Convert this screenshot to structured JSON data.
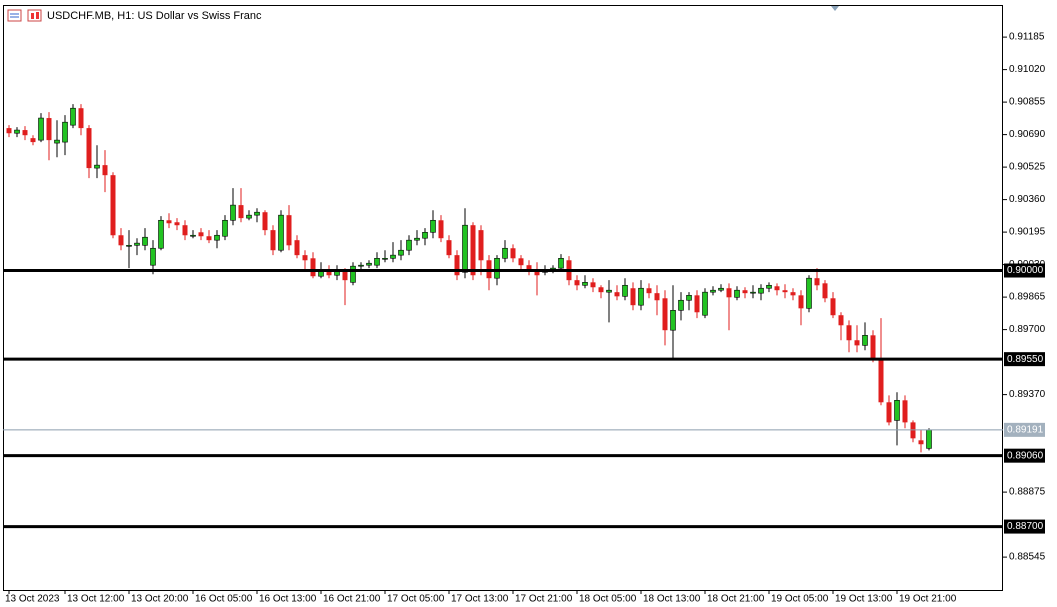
{
  "chart_data": {
    "type": "candlestick",
    "title": "USDCHF.MB, H1: US Dollar vs Swiss Franc",
    "up_color": "#22c322",
    "down_color": "#e01e1e",
    "categories": [
      "13 Oct 2023",
      null,
      null,
      null,
      null,
      null,
      null,
      "13 Oct 12:00",
      null,
      null,
      null,
      null,
      null,
      null,
      null,
      "13 Oct 20:00",
      null,
      null,
      null,
      null,
      null,
      null,
      null,
      "16 Oct 05:00",
      null,
      null,
      null,
      null,
      null,
      null,
      null,
      "16 Oct 13:00",
      null,
      null,
      null,
      null,
      null,
      null,
      null,
      "16 Oct 21:00",
      null,
      null,
      null,
      null,
      null,
      null,
      null,
      "17 Oct 05:00",
      null,
      null,
      null,
      null,
      null,
      null,
      null,
      "17 Oct 13:00",
      null,
      null,
      null,
      null,
      null,
      null,
      null,
      "17 Oct 21:00",
      null,
      null,
      null,
      null,
      null,
      null,
      null,
      "18 Oct 05:00",
      null,
      null,
      null,
      null,
      null,
      null,
      null,
      "18 Oct 13:00",
      null,
      null,
      null,
      null,
      null,
      null,
      null,
      "18 Oct 21:00",
      null,
      null,
      null,
      null,
      null,
      null,
      null,
      "19 Oct 05:00",
      null,
      null,
      null,
      null,
      null,
      null,
      null,
      "19 Oct 13:00",
      null,
      null,
      null,
      null,
      null,
      null,
      null,
      "19 Oct 21:00",
      null,
      null,
      null,
      null
    ],
    "open": [
      0.90723,
      0.90697,
      0.90713,
      0.90672,
      0.90662,
      0.90774,
      0.90647,
      0.90652,
      0.90738,
      0.90824,
      0.90723,
      0.9052,
      0.90535,
      0.90484,
      0.90179,
      0.90128,
      0.90128,
      0.90128,
      0.90027,
      0.90113,
      0.90255,
      0.90245,
      0.9023,
      0.90179,
      0.90194,
      0.90174,
      0.90154,
      0.90174,
      0.90255,
      0.90332,
      0.90266,
      0.90281,
      0.90296,
      0.90205,
      0.90103,
      0.90281,
      0.90154,
      0.90078,
      0.90062,
      0.89971,
      0.90001,
      0.89976,
      0.90001,
      0.8994,
      0.90022,
      0.90027,
      0.90027,
      0.90062,
      0.90062,
      0.90078,
      0.90103,
      0.90154,
      0.90164,
      0.90194,
      0.90255,
      0.90154,
      0.90078,
      0.89991,
      0.9023,
      0.90205,
      0.90052,
      0.89961,
      0.90062,
      0.90113,
      0.90062,
      0.90027,
      0.90001,
      0.89991,
      0.90001,
      0.90012,
      0.90052,
      0.89951,
      0.89925,
      0.8994,
      0.89915,
      0.8989,
      0.8989,
      0.89869,
      0.8991,
      0.89824,
      0.8991,
      0.89885,
      0.89859,
      0.89697,
      0.89798,
      0.89849,
      0.89874,
      0.89773,
      0.8989,
      0.899,
      0.8991,
      0.89864,
      0.899,
      0.8989,
      0.89885,
      0.8991,
      0.8992,
      0.899,
      0.8989,
      0.89874,
      0.89808,
      0.89961,
      0.89935,
      0.89859,
      0.89773,
      0.89722,
      0.89646,
      0.8962,
      0.89671,
      0.89554,
      0.89331,
      0.89239,
      0.89341,
      0.89229,
      0.89138,
      0.89097
    ],
    "high": [
      0.90738,
      0.90728,
      0.90733,
      0.90687,
      0.90799,
      0.90804,
      0.90763,
      0.90789,
      0.90845,
      0.90845,
      0.90738,
      0.90636,
      0.90611,
      0.90499,
      0.90215,
      0.90205,
      0.90164,
      0.90215,
      0.90154,
      0.90276,
      0.90291,
      0.90266,
      0.90255,
      0.90205,
      0.90215,
      0.90205,
      0.90205,
      0.90281,
      0.90418,
      0.90418,
      0.90306,
      0.90316,
      0.90306,
      0.9023,
      0.90306,
      0.90332,
      0.90179,
      0.90103,
      0.90093,
      0.90042,
      0.90027,
      0.90027,
      0.90012,
      0.90042,
      0.90042,
      0.90052,
      0.90093,
      0.90103,
      0.90144,
      0.90154,
      0.90179,
      0.90205,
      0.90215,
      0.90306,
      0.90281,
      0.90179,
      0.90103,
      0.90316,
      0.90245,
      0.9023,
      0.90078,
      0.90078,
      0.90154,
      0.90133,
      0.90078,
      0.90052,
      0.90042,
      0.90027,
      0.90027,
      0.90083,
      0.90073,
      0.89976,
      0.89976,
      0.89961,
      0.89925,
      0.89951,
      0.89925,
      0.89961,
      0.8994,
      0.89951,
      0.89935,
      0.89925,
      0.899,
      0.89925,
      0.8989,
      0.8989,
      0.899,
      0.8991,
      0.8992,
      0.8993,
      0.89935,
      0.8992,
      0.89915,
      0.89925,
      0.8993,
      0.8994,
      0.89935,
      0.8993,
      0.8991,
      0.899,
      0.89976,
      0.90012,
      0.89951,
      0.8989,
      0.89788,
      0.89747,
      0.89722,
      0.89737,
      0.89697,
      0.89758,
      0.89366,
      0.89382,
      0.89366,
      0.89239,
      0.89191,
      0.89199
    ],
    "low": [
      0.90677,
      0.90677,
      0.90662,
      0.90636,
      0.90652,
      0.9056,
      0.90575,
      0.90586,
      0.90723,
      0.90687,
      0.90469,
      0.90469,
      0.90398,
      0.90164,
      0.90103,
      0.90012,
      0.90078,
      0.90103,
      0.89981,
      0.90103,
      0.90215,
      0.90205,
      0.90154,
      0.90164,
      0.90154,
      0.90139,
      0.90113,
      0.90154,
      0.9023,
      0.90245,
      0.90255,
      0.90245,
      0.90179,
      0.90078,
      0.90093,
      0.90103,
      0.90062,
      0.90001,
      0.89961,
      0.89961,
      0.89961,
      0.89951,
      0.89824,
      0.89925,
      0.90001,
      0.90012,
      0.90012,
      0.90042,
      0.90042,
      0.90052,
      0.90078,
      0.90128,
      0.90128,
      0.90164,
      0.90144,
      0.90062,
      0.89951,
      0.89961,
      0.89951,
      0.89976,
      0.899,
      0.89925,
      0.90042,
      0.90042,
      0.90001,
      0.89976,
      0.89874,
      0.89976,
      0.89986,
      0.90001,
      0.89925,
      0.899,
      0.8991,
      0.8989,
      0.89859,
      0.89737,
      0.89849,
      0.89849,
      0.89798,
      0.89798,
      0.89859,
      0.89773,
      0.8962,
      0.89554,
      0.89747,
      0.89798,
      0.89758,
      0.89758,
      0.89874,
      0.8989,
      0.89697,
      0.89849,
      0.89859,
      0.89859,
      0.89849,
      0.8989,
      0.89874,
      0.89859,
      0.89849,
      0.89722,
      0.89788,
      0.899,
      0.89839,
      0.89758,
      0.89646,
      0.89585,
      0.89585,
      0.89595,
      0.89534,
      0.89316,
      0.89214,
      0.89112,
      0.89199,
      0.89128,
      0.89077,
      0.89087
    ],
    "close": [
      0.90697,
      0.90713,
      0.90687,
      0.90652,
      0.90774,
      0.90662,
      0.90662,
      0.90753,
      0.90824,
      0.90723,
      0.9052,
      0.90535,
      0.90484,
      0.90179,
      0.90128,
      0.90128,
      0.90139,
      0.90169,
      0.90113,
      0.90255,
      0.9024,
      0.9023,
      0.90179,
      0.90179,
      0.90174,
      0.90154,
      0.90179,
      0.90255,
      0.90332,
      0.90266,
      0.90281,
      0.90296,
      0.90205,
      0.90103,
      0.90281,
      0.90128,
      0.90078,
      0.90052,
      0.89971,
      0.90001,
      0.89976,
      0.90001,
      0.89951,
      0.90022,
      0.90027,
      0.90037,
      0.90062,
      0.90062,
      0.90078,
      0.90103,
      0.90154,
      0.90164,
      0.90194,
      0.90255,
      0.90164,
      0.90078,
      0.89976,
      0.9023,
      0.89976,
      0.90052,
      0.89961,
      0.90062,
      0.90113,
      0.90062,
      0.90027,
      0.90001,
      0.89976,
      0.90001,
      0.90012,
      0.90062,
      0.89951,
      0.89925,
      0.8994,
      0.89915,
      0.8989,
      0.899,
      0.89869,
      0.89925,
      0.89824,
      0.8991,
      0.89885,
      0.89849,
      0.89697,
      0.89798,
      0.89849,
      0.89874,
      0.89788,
      0.8989,
      0.899,
      0.8991,
      0.89864,
      0.899,
      0.89885,
      0.8989,
      0.8991,
      0.89925,
      0.899,
      0.8989,
      0.89874,
      0.89808,
      0.89961,
      0.89925,
      0.89859,
      0.89773,
      0.89722,
      0.89646,
      0.8962,
      0.89671,
      0.89554,
      0.89331,
      0.89229,
      0.89341,
      0.89229,
      0.89148,
      0.89118,
      0.89191
    ],
    "ylim": [
      0.88378,
      0.91348
    ],
    "yticks": [
      {
        "value": 0.91185,
        "label": "0.91185"
      },
      {
        "value": 0.9102,
        "label": "0.91020"
      },
      {
        "value": 0.90855,
        "label": "0.90855"
      },
      {
        "value": 0.9069,
        "label": "0.90690"
      },
      {
        "value": 0.90525,
        "label": "0.90525"
      },
      {
        "value": 0.9036,
        "label": "0.90360"
      },
      {
        "value": 0.90195,
        "label": "0.90195"
      },
      {
        "value": 0.9003,
        "label": "0.90030"
      },
      {
        "value": 0.89865,
        "label": "0.89865"
      },
      {
        "value": 0.897,
        "label": "0.89700"
      },
      {
        "value": 0.8937,
        "label": "0.89370"
      },
      {
        "value": 0.88875,
        "label": "0.88875"
      },
      {
        "value": 0.88545,
        "label": "0.88545"
      }
    ],
    "levels": [
      {
        "value": 0.9,
        "label": "0.90000"
      },
      {
        "value": 0.8955,
        "label": "0.89550"
      },
      {
        "value": 0.8906,
        "label": "0.89060"
      },
      {
        "value": 0.887,
        "label": "0.88700"
      }
    ],
    "current_price": {
      "value": 0.89191,
      "label": "0.89191"
    },
    "grid": false
  }
}
